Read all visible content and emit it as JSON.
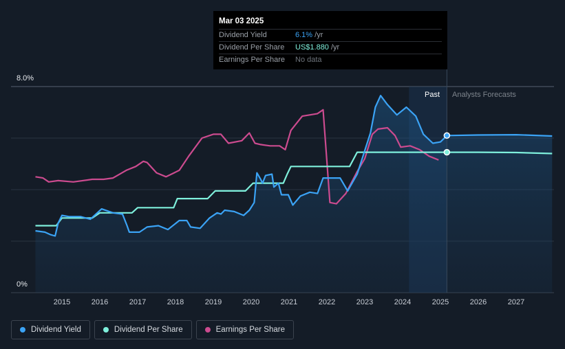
{
  "chart_data": {
    "type": "line",
    "y_axis": {
      "labels": [
        "8.0%",
        "0%"
      ],
      "ylim": [
        0,
        8.0
      ],
      "unit": "%"
    },
    "x_axis": {
      "tick_labels": [
        "2015",
        "2016",
        "2017",
        "2018",
        "2019",
        "2020",
        "2021",
        "2022",
        "2023",
        "2024",
        "2025",
        "2026",
        "2027"
      ]
    },
    "grid": "horizontal",
    "split_date": "2025.17",
    "region_labels": {
      "past": "Past",
      "forecast": "Analysts Forecasts"
    },
    "tooltip": {
      "date": "Mar 03 2025",
      "rows": [
        {
          "label": "Dividend Yield",
          "value": "6.1%",
          "suffix": " /yr"
        },
        {
          "label": "Dividend Per Share",
          "value": "US$1.880",
          "suffix": " /yr"
        },
        {
          "label": "Earnings Per Share",
          "value": "No data",
          "suffix": ""
        }
      ]
    },
    "series": [
      {
        "name": "Dividend Yield",
        "color": "#3ba3f5",
        "points": [
          [
            2014.3,
            2.4
          ],
          [
            2014.55,
            2.35
          ],
          [
            2014.7,
            2.25
          ],
          [
            2014.82,
            2.2
          ],
          [
            2014.9,
            2.7
          ],
          [
            2015.0,
            3.0
          ],
          [
            2015.2,
            2.95
          ],
          [
            2015.5,
            2.95
          ],
          [
            2015.75,
            2.85
          ],
          [
            2016.05,
            3.25
          ],
          [
            2016.35,
            3.1
          ],
          [
            2016.6,
            3.05
          ],
          [
            2016.72,
            2.6
          ],
          [
            2016.78,
            2.35
          ],
          [
            2017.05,
            2.35
          ],
          [
            2017.25,
            2.55
          ],
          [
            2017.55,
            2.6
          ],
          [
            2017.8,
            2.45
          ],
          [
            2018.1,
            2.8
          ],
          [
            2018.3,
            2.8
          ],
          [
            2018.4,
            2.55
          ],
          [
            2018.65,
            2.5
          ],
          [
            2018.9,
            2.9
          ],
          [
            2019.1,
            3.1
          ],
          [
            2019.2,
            3.05
          ],
          [
            2019.3,
            3.2
          ],
          [
            2019.55,
            3.15
          ],
          [
            2019.8,
            3.0
          ],
          [
            2019.95,
            3.2
          ],
          [
            2020.08,
            3.5
          ],
          [
            2020.15,
            4.65
          ],
          [
            2020.25,
            4.4
          ],
          [
            2020.3,
            4.25
          ],
          [
            2020.38,
            4.55
          ],
          [
            2020.55,
            4.6
          ],
          [
            2020.6,
            4.1
          ],
          [
            2020.72,
            4.25
          ],
          [
            2020.8,
            3.8
          ],
          [
            2020.98,
            3.8
          ],
          [
            2021.1,
            3.4
          ],
          [
            2021.3,
            3.75
          ],
          [
            2021.55,
            3.9
          ],
          [
            2021.75,
            3.85
          ],
          [
            2021.9,
            4.45
          ],
          [
            2022.0,
            4.45
          ],
          [
            2022.35,
            4.45
          ],
          [
            2022.55,
            3.95
          ],
          [
            2022.8,
            4.6
          ],
          [
            2023.15,
            6.2
          ],
          [
            2023.28,
            7.2
          ],
          [
            2023.42,
            7.65
          ],
          [
            2023.6,
            7.3
          ],
          [
            2023.85,
            6.9
          ],
          [
            2024.1,
            7.2
          ],
          [
            2024.35,
            6.85
          ],
          [
            2024.55,
            6.15
          ],
          [
            2024.8,
            5.8
          ],
          [
            2025.0,
            5.85
          ],
          [
            2025.17,
            6.1
          ],
          [
            2026.0,
            6.12
          ],
          [
            2027.0,
            6.13
          ],
          [
            2027.95,
            6.08
          ]
        ]
      },
      {
        "name": "Dividend Per Share",
        "color": "#7ff0dc",
        "points": [
          [
            2014.3,
            2.6
          ],
          [
            2014.85,
            2.6
          ],
          [
            2015.0,
            2.9
          ],
          [
            2015.8,
            2.9
          ],
          [
            2016.0,
            3.1
          ],
          [
            2016.85,
            3.1
          ],
          [
            2017.0,
            3.3
          ],
          [
            2017.95,
            3.3
          ],
          [
            2018.05,
            3.65
          ],
          [
            2018.85,
            3.65
          ],
          [
            2019.05,
            3.95
          ],
          [
            2019.85,
            3.95
          ],
          [
            2020.05,
            4.25
          ],
          [
            2020.85,
            4.25
          ],
          [
            2020.95,
            4.6
          ],
          [
            2021.05,
            4.9
          ],
          [
            2022.6,
            4.9
          ],
          [
            2022.8,
            5.45
          ],
          [
            2025.17,
            5.45
          ],
          [
            2026.0,
            5.45
          ],
          [
            2027.0,
            5.44
          ],
          [
            2027.95,
            5.4
          ]
        ]
      },
      {
        "name": "Earnings Per Share",
        "color": "#cc4b8f",
        "points": [
          [
            2014.3,
            4.5
          ],
          [
            2014.5,
            4.45
          ],
          [
            2014.65,
            4.3
          ],
          [
            2014.9,
            4.35
          ],
          [
            2015.3,
            4.3
          ],
          [
            2015.8,
            4.4
          ],
          [
            2016.1,
            4.4
          ],
          [
            2016.35,
            4.45
          ],
          [
            2016.7,
            4.75
          ],
          [
            2016.95,
            4.9
          ],
          [
            2017.15,
            5.1
          ],
          [
            2017.25,
            5.05
          ],
          [
            2017.5,
            4.65
          ],
          [
            2017.75,
            4.5
          ],
          [
            2018.1,
            4.75
          ],
          [
            2018.35,
            5.3
          ],
          [
            2018.7,
            6.0
          ],
          [
            2019.0,
            6.15
          ],
          [
            2019.2,
            6.15
          ],
          [
            2019.4,
            5.8
          ],
          [
            2019.75,
            5.9
          ],
          [
            2019.95,
            6.2
          ],
          [
            2020.1,
            5.8
          ],
          [
            2020.25,
            5.75
          ],
          [
            2020.5,
            5.7
          ],
          [
            2020.75,
            5.7
          ],
          [
            2020.9,
            5.55
          ],
          [
            2021.05,
            6.3
          ],
          [
            2021.35,
            6.85
          ],
          [
            2021.75,
            6.95
          ],
          [
            2021.9,
            7.1
          ],
          [
            2022.08,
            3.5
          ],
          [
            2022.25,
            3.45
          ],
          [
            2022.5,
            3.85
          ],
          [
            2022.8,
            4.7
          ],
          [
            2023.0,
            5.2
          ],
          [
            2023.2,
            6.15
          ],
          [
            2023.35,
            6.35
          ],
          [
            2023.6,
            6.4
          ],
          [
            2023.8,
            6.1
          ],
          [
            2023.95,
            5.65
          ],
          [
            2024.2,
            5.7
          ],
          [
            2024.45,
            5.55
          ],
          [
            2024.7,
            5.3
          ],
          [
            2024.95,
            5.15
          ]
        ]
      }
    ]
  },
  "legend": [
    {
      "label": "Dividend Yield",
      "color": "#3ba3f5"
    },
    {
      "label": "Dividend Per Share",
      "color": "#7ff0dc"
    },
    {
      "label": "Earnings Per Share",
      "color": "#cc4b8f"
    }
  ]
}
